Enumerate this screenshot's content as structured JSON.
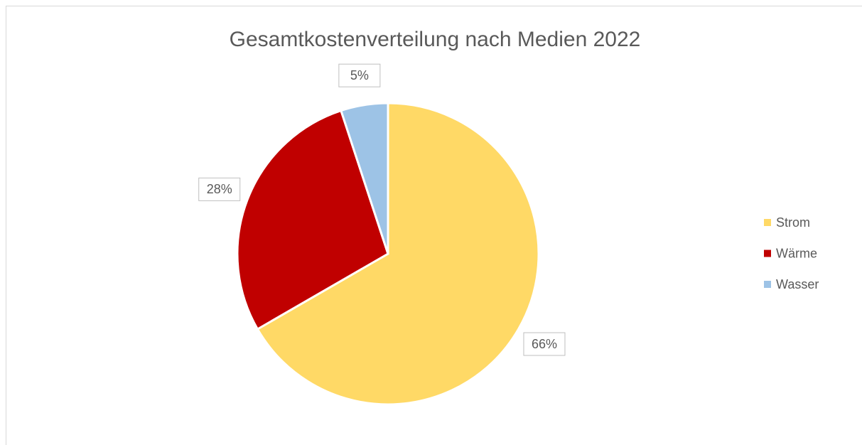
{
  "chart_data": {
    "type": "pie",
    "title": "Gesamtkostenverteilung nach Medien 2022",
    "categories": [
      "Strom",
      "Wärme",
      "Wasser"
    ],
    "values": [
      66,
      28,
      5
    ],
    "value_labels": [
      "66%",
      "28%",
      "5%"
    ],
    "colors": [
      "#FFD966",
      "#C00000",
      "#9DC3E6"
    ],
    "legend": "right"
  }
}
